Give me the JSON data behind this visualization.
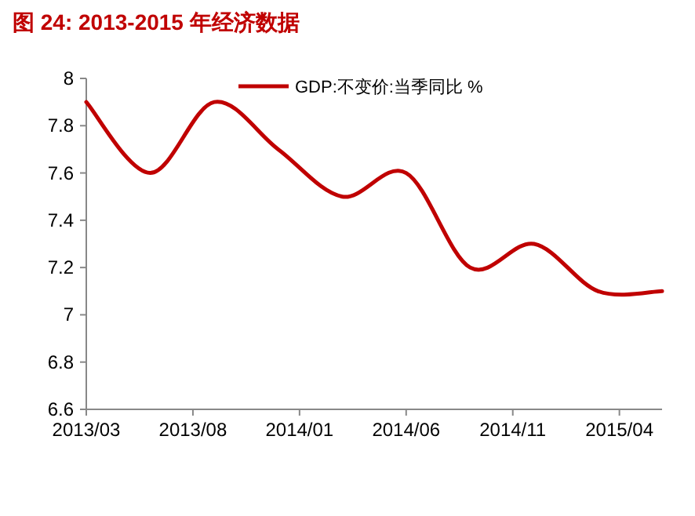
{
  "chart_data": {
    "type": "line",
    "title": "图 24: 2013-2015 年经济数据",
    "x": [
      "2013-03",
      "2013-06",
      "2013-09",
      "2013-12",
      "2014-03",
      "2014-06",
      "2014-09",
      "2014-12",
      "2015-03",
      "2015-06"
    ],
    "series": [
      {
        "name": "GDP:不变价:当季同比 %",
        "color": "#c00000",
        "values": [
          7.9,
          7.6,
          7.9,
          7.7,
          7.5,
          7.6,
          7.2,
          7.3,
          7.1,
          7.1
        ]
      }
    ],
    "xlim": [
      "2013-03",
      "2015-06"
    ],
    "xticks": [
      {
        "value": "2013-03",
        "label": "2013/03"
      },
      {
        "value": "2013-08",
        "label": "2013/08"
      },
      {
        "value": "2014-01",
        "label": "2014/01"
      },
      {
        "value": "2014-06",
        "label": "2014/06"
      },
      {
        "value": "2014-11",
        "label": "2014/11"
      },
      {
        "value": "2015-04",
        "label": "2015/04"
      }
    ],
    "ylim": [
      6.6,
      8
    ],
    "yticks": [
      6.6,
      6.8,
      7,
      7.2,
      7.4,
      7.6,
      7.8,
      8
    ],
    "grid": false,
    "legend": "top",
    "marker": "none",
    "line_style": "solid"
  }
}
